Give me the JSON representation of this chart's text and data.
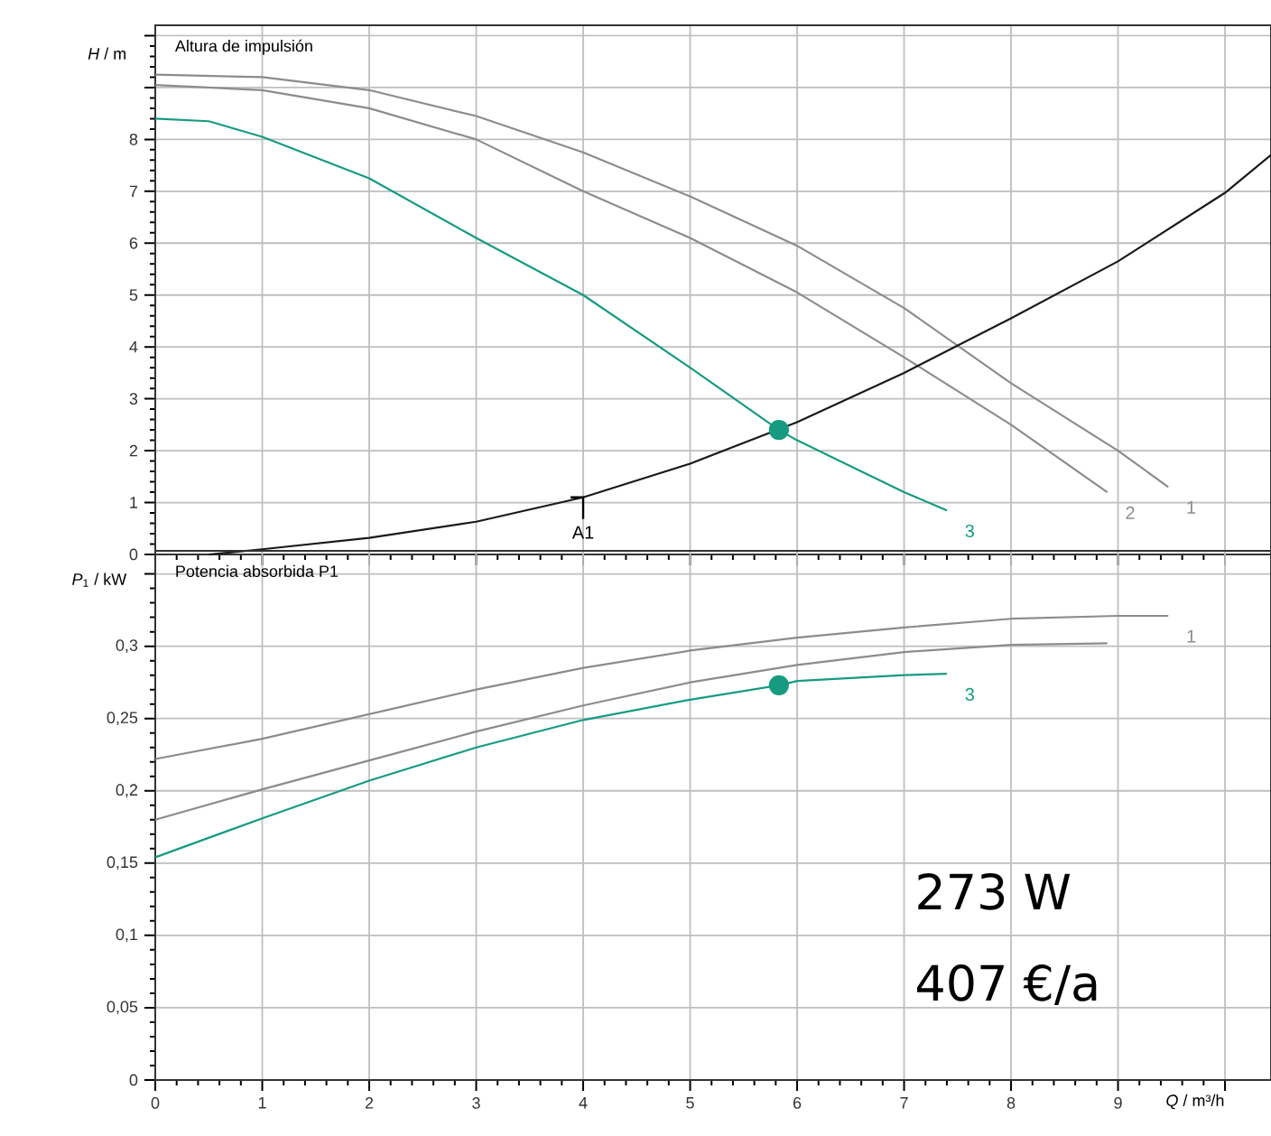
{
  "chart_data": [
    {
      "type": "line",
      "title": "Altura de impulsión",
      "ylabel": "*H* / m",
      "xlim": [
        0,
        10.43
      ],
      "ylim": [
        0,
        10.2
      ],
      "xticks": [
        0,
        1,
        2,
        3,
        4,
        5,
        6,
        7,
        8,
        9,
        10
      ],
      "yticks": [
        0,
        1,
        2,
        3,
        4,
        5,
        6,
        7,
        8,
        {
          "value": 9,
          "label": null
        },
        {
          "value": 10,
          "label": null
        }
      ],
      "tick_labels": "y",
      "grid": true,
      "series": [
        {
          "name": "1",
          "color": "#8c8c8c",
          "x": [
            0,
            1,
            2,
            3,
            4,
            5,
            6,
            7,
            8,
            9,
            9.47
          ],
          "values": [
            9.25,
            9.2,
            8.95,
            8.45,
            7.75,
            6.9,
            5.95,
            4.75,
            3.3,
            2.0,
            1.3
          ]
        },
        {
          "name": "2",
          "color": "#8c8c8c",
          "x": [
            0,
            1,
            2,
            3,
            4,
            5,
            6,
            7,
            8,
            8.9
          ],
          "values": [
            9.05,
            8.95,
            8.6,
            8.0,
            7.0,
            6.1,
            5.05,
            3.8,
            2.5,
            1.2
          ]
        },
        {
          "name": "3",
          "color": "#169b80",
          "x": [
            0,
            0.5,
            1,
            2,
            3,
            4,
            5,
            5.83,
            6,
            7,
            7.4
          ],
          "values": [
            8.4,
            8.35,
            8.05,
            7.25,
            6.1,
            5.0,
            3.6,
            2.4,
            2.2,
            1.2,
            0.85
          ]
        },
        {
          "color": "#1a1a1a",
          "x": [
            0.5,
            1,
            2,
            3,
            4,
            5,
            6,
            7,
            8,
            9,
            10,
            10.43
          ],
          "values": [
            0,
            0.1,
            0.32,
            0.63,
            1.1,
            1.75,
            2.55,
            3.5,
            4.55,
            5.65,
            6.97,
            7.7
          ]
        },
        {
          "type": "scatter",
          "color": "#169b80",
          "x": [
            5.83
          ],
          "values": [
            2.4
          ]
        }
      ],
      "annotations": [
        {
          "text": "A1",
          "x": 4,
          "y": 1.1
        }
      ]
    },
    {
      "type": "line",
      "title": "Potencia absorbida P1",
      "ylabel": "*P*$_{1}$ / kW",
      "xlabel": "*Q* / m³/h",
      "xlim": [
        0,
        10.43
      ],
      "ylim": [
        0,
        0.366
      ],
      "xticks": [
        0,
        1,
        2,
        3,
        4,
        5,
        6,
        7,
        8,
        9,
        {
          "value": 10,
          "label": null
        }
      ],
      "yticks": [
        0,
        {
          "value": 0.05,
          "label": "0,05"
        },
        {
          "value": 0.1,
          "label": "0,1"
        },
        {
          "value": 0.15,
          "label": "0,15"
        },
        {
          "value": 0.2,
          "label": "0,2"
        },
        {
          "value": 0.25,
          "label": "0,25"
        },
        {
          "value": 0.3,
          "label": "0,3"
        },
        {
          "value": 0.35,
          "label": null
        }
      ],
      "grid": true,
      "series": [
        {
          "name": "1",
          "color": "#8c8c8c",
          "x": [
            0,
            1,
            2,
            3,
            4,
            5,
            6,
            7,
            8,
            9,
            9.47
          ],
          "values": [
            0.222,
            0.236,
            0.253,
            0.27,
            0.285,
            0.297,
            0.306,
            0.313,
            0.319,
            0.321,
            0.321
          ]
        },
        {
          "color": "#8c8c8c",
          "x": [
            0,
            1,
            2,
            3,
            4,
            5,
            6,
            7,
            8,
            8.9
          ],
          "values": [
            0.18,
            0.201,
            0.221,
            0.241,
            0.259,
            0.275,
            0.287,
            0.296,
            0.301,
            0.302
          ]
        },
        {
          "name": "3",
          "color": "#169b80",
          "x": [
            0,
            1,
            2,
            3,
            4,
            5,
            5.83,
            6,
            7,
            7.4
          ],
          "values": [
            0.154,
            0.181,
            0.207,
            0.23,
            0.249,
            0.263,
            0.273,
            0.276,
            0.28,
            0.281
          ]
        },
        {
          "type": "scatter",
          "color": "#169b80",
          "x": [
            5.83
          ],
          "values": [
            0.273
          ]
        }
      ],
      "annotations": [
        "273 W",
        "407 €/a"
      ]
    }
  ]
}
